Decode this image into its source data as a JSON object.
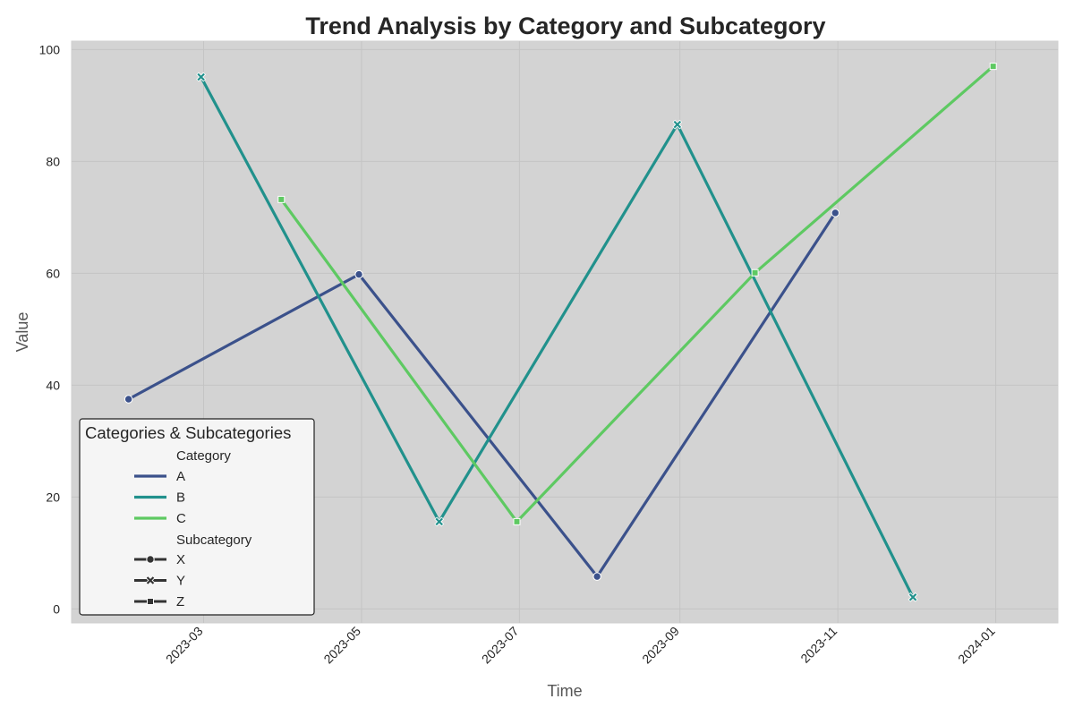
{
  "chart_data": {
    "type": "line",
    "title": "Trend Analysis by Category and Subcategory",
    "xlabel": "Time",
    "ylabel": "Value",
    "x_range": [
      "2023-01-09",
      "2024-01-25"
    ],
    "ylim": [
      -2.5,
      101.5
    ],
    "x_ticks": [
      "2023-03",
      "2023-05",
      "2023-07",
      "2023-09",
      "2023-11",
      "2024-01"
    ],
    "y_ticks": [
      0,
      20,
      40,
      60,
      80,
      100
    ],
    "grid": true,
    "background": "#d3d3d3",
    "series": [
      {
        "name": "A",
        "color": "#3b518b",
        "points": [
          {
            "x": "2023-01-31",
            "y": 37.5,
            "subcategory": "X"
          },
          {
            "x": "2023-04-30",
            "y": 59.8,
            "subcategory": "X"
          },
          {
            "x": "2023-07-31",
            "y": 5.8,
            "subcategory": "X"
          },
          {
            "x": "2023-10-31",
            "y": 70.8,
            "subcategory": "X"
          }
        ]
      },
      {
        "name": "B",
        "color": "#21918c",
        "points": [
          {
            "x": "2023-02-28",
            "y": 95.1,
            "subcategory": "Y"
          },
          {
            "x": "2023-05-31",
            "y": 15.6,
            "subcategory": "Y"
          },
          {
            "x": "2023-08-31",
            "y": 86.6,
            "subcategory": "Y"
          },
          {
            "x": "2023-11-30",
            "y": 2.1,
            "subcategory": "Y"
          }
        ]
      },
      {
        "name": "C",
        "color": "#5ec962",
        "points": [
          {
            "x": "2023-03-31",
            "y": 73.2,
            "subcategory": "Z"
          },
          {
            "x": "2023-06-30",
            "y": 15.6,
            "subcategory": "Z"
          },
          {
            "x": "2023-09-30",
            "y": 60.1,
            "subcategory": "Z"
          },
          {
            "x": "2023-12-31",
            "y": 97.0,
            "subcategory": "Z"
          }
        ]
      }
    ],
    "legend": {
      "title": "Categories & Subcategories",
      "placement": "lower-left",
      "category_heading": "Category",
      "subcategory_heading": "Subcategory",
      "categories": [
        "A",
        "B",
        "C"
      ],
      "subcategories": [
        {
          "name": "X",
          "marker": "circle"
        },
        {
          "name": "Y",
          "marker": "x"
        },
        {
          "name": "Z",
          "marker": "square"
        }
      ]
    }
  }
}
